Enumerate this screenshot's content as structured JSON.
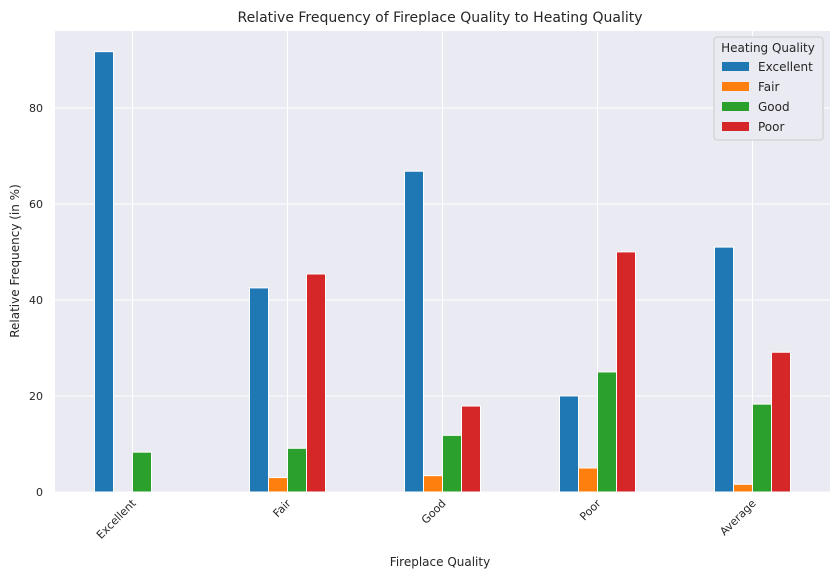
{
  "chart_data": {
    "type": "bar",
    "title": "Relative Frequency of Fireplace Quality to Heating Quality",
    "xlabel": "Fireplace Quality",
    "ylabel": "Relative Frequency (in %)",
    "categories": [
      "Excellent",
      "Fair",
      "Good",
      "Poor",
      "Average"
    ],
    "ylim": [
      0,
      96
    ],
    "yticks": [
      0,
      20,
      40,
      60,
      80
    ],
    "grid": true,
    "legend": {
      "title": "Heating Quality",
      "placement": "top-right"
    },
    "series": [
      {
        "name": "Excellent",
        "color": "#1f77b4",
        "values": [
          91.7,
          42.5,
          66.8,
          20.0,
          51.0
        ]
      },
      {
        "name": "Fair",
        "color": "#ff7f0e",
        "values": [
          0.0,
          3.0,
          3.4,
          5.0,
          1.6
        ]
      },
      {
        "name": "Good",
        "color": "#2ca02c",
        "values": [
          8.3,
          9.1,
          11.8,
          25.0,
          18.3
        ]
      },
      {
        "name": "Poor",
        "color": "#d62728",
        "values": [
          0.0,
          45.4,
          17.9,
          50.0,
          29.1
        ]
      }
    ]
  }
}
